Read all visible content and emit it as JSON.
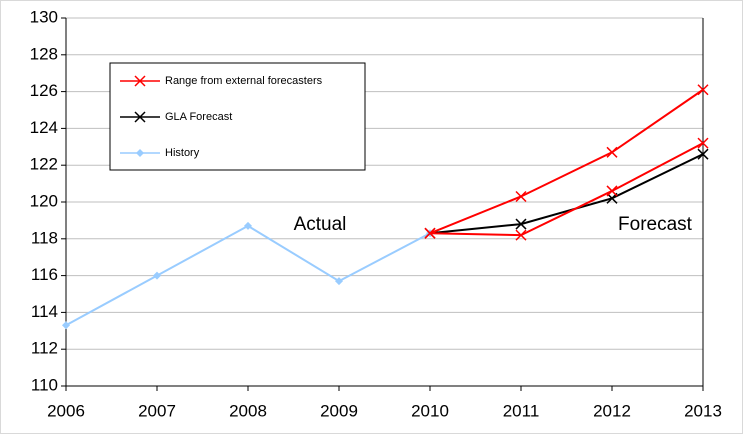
{
  "chart_data": {
    "type": "line",
    "categories": [
      "2006",
      "2007",
      "2008",
      "2009",
      "2010",
      "2011",
      "2012",
      "2013"
    ],
    "series": [
      {
        "name": "Range from external forecasters",
        "color": "#ff0000",
        "marker": "x",
        "values": [
          null,
          null,
          null,
          null,
          118.3,
          120.3,
          122.7,
          126.1
        ],
        "values_low": [
          null,
          null,
          null,
          null,
          118.3,
          118.2,
          120.6,
          123.2
        ]
      },
      {
        "name": "GLA Forecast",
        "color": "#000000",
        "marker": "x",
        "values": [
          null,
          null,
          null,
          null,
          118.3,
          118.8,
          120.2,
          122.6
        ]
      },
      {
        "name": "History",
        "color": "#99ccff",
        "marker": "diamond",
        "values": [
          113.3,
          116.0,
          118.7,
          115.7,
          118.3,
          null,
          null,
          null
        ]
      }
    ],
    "annotations": [
      "Actual",
      "Forecast"
    ],
    "ylim": [
      110,
      130
    ],
    "yticks": [
      110,
      112,
      114,
      116,
      118,
      120,
      122,
      124,
      126,
      128,
      130
    ],
    "grid": true
  }
}
